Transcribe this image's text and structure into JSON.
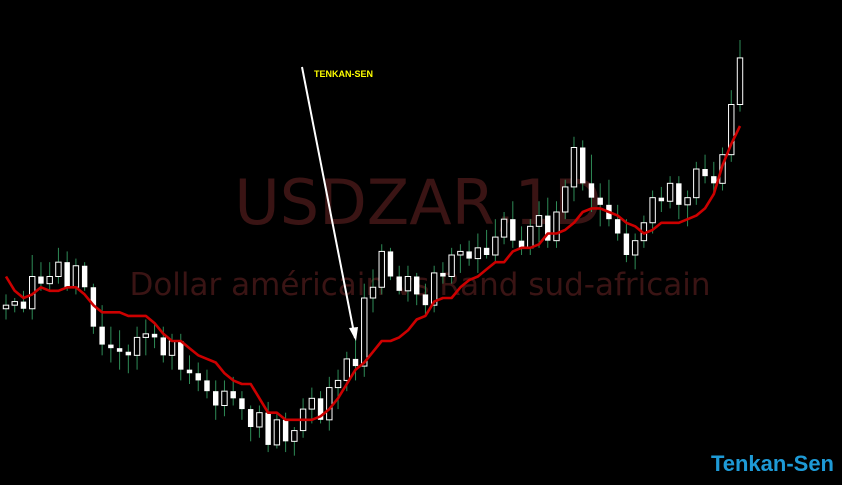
{
  "chart_data": {
    "type": "candlestick",
    "symbol": "USDZAR",
    "timeframe": "1D",
    "watermark_title": "USDZAR,1D",
    "watermark_subtitle": "Dollar américain vs Rand sud-africain",
    "annotation": "TENKAN-SEN",
    "indicator": {
      "name": "Tenkan-Sen",
      "color": "#cc0000"
    },
    "colors": {
      "up": "#ffffff",
      "down": "#ffffff",
      "wick": "#2e8b57",
      "background": "#000000"
    },
    "ylim": [
      0,
      100
    ],
    "candles": [
      [
        45,
        49,
        42,
        46
      ],
      [
        46,
        48,
        44,
        47
      ],
      [
        47,
        50,
        44,
        45
      ],
      [
        45,
        60,
        42,
        54
      ],
      [
        54,
        58,
        50,
        52
      ],
      [
        52,
        58,
        50,
        54
      ],
      [
        54,
        62,
        52,
        58
      ],
      [
        58,
        61,
        50,
        51
      ],
      [
        51,
        59,
        49,
        57
      ],
      [
        57,
        58,
        50,
        51
      ],
      [
        51,
        52,
        38,
        40
      ],
      [
        40,
        46,
        32,
        35
      ],
      [
        35,
        40,
        30,
        34
      ],
      [
        34,
        39,
        28,
        33
      ],
      [
        33,
        35,
        27,
        32
      ],
      [
        32,
        40,
        28,
        37
      ],
      [
        37,
        42,
        32,
        38
      ],
      [
        38,
        41,
        34,
        37
      ],
      [
        37,
        40,
        30,
        32
      ],
      [
        32,
        38,
        28,
        36
      ],
      [
        36,
        38,
        25,
        28
      ],
      [
        28,
        32,
        24,
        27
      ],
      [
        27,
        30,
        22,
        25
      ],
      [
        25,
        28,
        20,
        22
      ],
      [
        22,
        25,
        14,
        18
      ],
      [
        18,
        25,
        15,
        22
      ],
      [
        22,
        26,
        18,
        20
      ],
      [
        20,
        22,
        14,
        17
      ],
      [
        17,
        18,
        8,
        12
      ],
      [
        12,
        18,
        9,
        16
      ],
      [
        16,
        19,
        5,
        7
      ],
      [
        7,
        16,
        6,
        14
      ],
      [
        14,
        16,
        5,
        8
      ],
      [
        8,
        12,
        4,
        11
      ],
      [
        11,
        20,
        9,
        17
      ],
      [
        17,
        23,
        13,
        20
      ],
      [
        20,
        22,
        13,
        14
      ],
      [
        14,
        26,
        11,
        23
      ],
      [
        23,
        28,
        17,
        25
      ],
      [
        25,
        33,
        22,
        31
      ],
      [
        31,
        38,
        25,
        29
      ],
      [
        29,
        52,
        26,
        48
      ],
      [
        48,
        56,
        44,
        51
      ],
      [
        51,
        63,
        49,
        61
      ],
      [
        61,
        62,
        53,
        54
      ],
      [
        54,
        57,
        49,
        50
      ],
      [
        50,
        57,
        47,
        54
      ],
      [
        54,
        55,
        46,
        49
      ],
      [
        49,
        52,
        43,
        46
      ],
      [
        46,
        57,
        44,
        55
      ],
      [
        55,
        58,
        52,
        54
      ],
      [
        54,
        62,
        52,
        60
      ],
      [
        60,
        63,
        55,
        61
      ],
      [
        61,
        64,
        57,
        59
      ],
      [
        59,
        66,
        55,
        62
      ],
      [
        62,
        67,
        59,
        60
      ],
      [
        60,
        70,
        58,
        65
      ],
      [
        65,
        72,
        63,
        70
      ],
      [
        70,
        75,
        62,
        64
      ],
      [
        64,
        68,
        60,
        62
      ],
      [
        62,
        70,
        60,
        68
      ],
      [
        68,
        75,
        62,
        71
      ],
      [
        71,
        76,
        62,
        64
      ],
      [
        64,
        75,
        62,
        72
      ],
      [
        72,
        81,
        70,
        79
      ],
      [
        79,
        93,
        75,
        90
      ],
      [
        90,
        92,
        78,
        80
      ],
      [
        80,
        88,
        72,
        76
      ],
      [
        76,
        80,
        68,
        74
      ],
      [
        74,
        81,
        68,
        70
      ],
      [
        70,
        74,
        64,
        66
      ],
      [
        66,
        70,
        58,
        60
      ],
      [
        60,
        66,
        56,
        64
      ],
      [
        64,
        71,
        62,
        69
      ],
      [
        69,
        78,
        66,
        76
      ],
      [
        76,
        79,
        72,
        75
      ],
      [
        75,
        82,
        73,
        80
      ],
      [
        80,
        82,
        70,
        74
      ],
      [
        74,
        78,
        68,
        76
      ],
      [
        76,
        86,
        74,
        84
      ],
      [
        84,
        88,
        80,
        82
      ],
      [
        82,
        86,
        77,
        80
      ],
      [
        80,
        90,
        78,
        88
      ],
      [
        88,
        106,
        86,
        102
      ],
      [
        102,
        120,
        100,
        115
      ]
    ],
    "tenkan_sen": [
      54,
      50,
      48,
      49,
      51,
      50,
      50,
      51,
      51,
      49,
      46,
      44,
      44,
      44,
      43,
      43,
      43,
      41,
      38,
      36,
      36,
      34,
      32,
      31,
      30,
      27,
      25,
      24,
      24,
      20,
      16,
      16,
      14,
      14,
      14,
      14,
      15,
      17,
      20,
      24,
      28,
      30,
      33,
      36,
      36,
      37,
      39,
      42,
      43,
      47,
      48,
      48,
      51,
      53,
      54,
      56,
      58,
      58,
      61,
      62,
      62,
      63,
      66,
      66,
      67,
      69,
      72,
      73,
      73,
      72,
      71,
      69,
      68,
      66,
      67,
      69,
      69,
      69,
      70,
      71,
      73,
      77,
      85,
      91,
      96
    ]
  },
  "brand": "Tenkan-Sen"
}
